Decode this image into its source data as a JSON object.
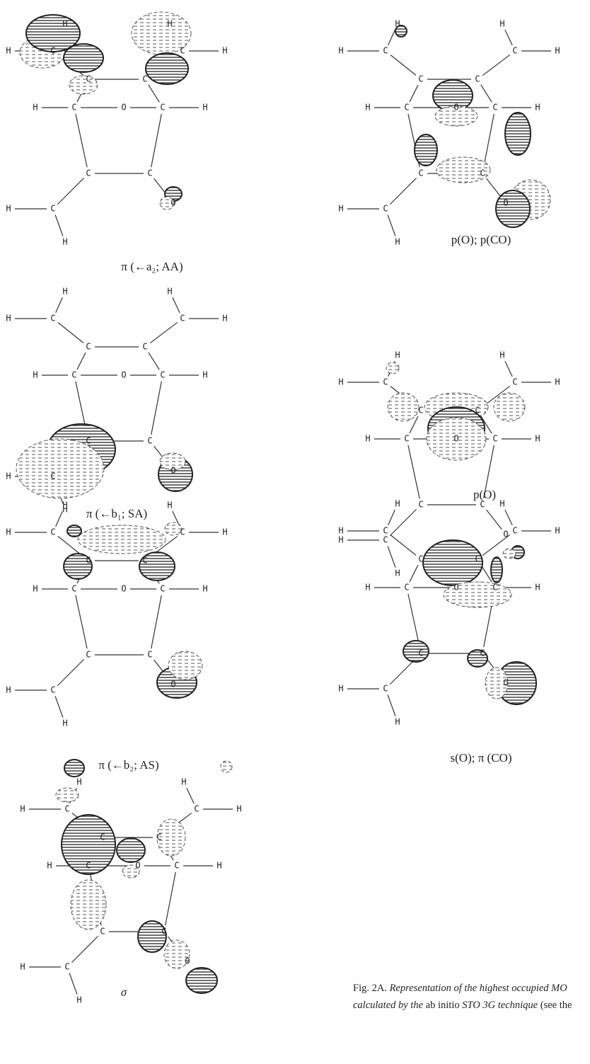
{
  "figure": {
    "panels": [
      {
        "caption": "π (←a₂; AA)",
        "atoms": [
          "H",
          "H",
          "H",
          "C",
          "C",
          "H",
          "C",
          "C",
          "H",
          "C",
          "O",
          "C",
          "H",
          "C",
          "C",
          "O",
          "H",
          "C",
          "H"
        ]
      },
      {
        "caption": "π (←b₁; SA)",
        "atoms": [
          "H",
          "H",
          "H",
          "C",
          "C",
          "H",
          "C",
          "C",
          "H",
          "C",
          "O",
          "C",
          "H",
          "C",
          "C",
          "O",
          "H",
          "C",
          "H"
        ]
      },
      {
        "caption": "π (←b₂; AS)",
        "atoms": [
          "H",
          "H",
          "H",
          "C",
          "C",
          "H",
          "C",
          "C",
          "H",
          "C",
          "O",
          "C",
          "H",
          "C",
          "C",
          "O",
          "H",
          "C",
          "H"
        ]
      },
      {
        "caption": "σ",
        "atoms": [
          "H",
          "H",
          "H",
          "C",
          "C",
          "H",
          "C",
          "C",
          "H",
          "C",
          "O",
          "C",
          "H",
          "C",
          "C",
          "O",
          "H",
          "C",
          "H"
        ]
      },
      {
        "caption": "p(O); p(CO)",
        "atoms": [
          "H",
          "H",
          "H",
          "C",
          "C",
          "H",
          "C",
          "C",
          "H",
          "C",
          "O",
          "C",
          "H",
          "C",
          "C",
          "O",
          "H",
          "C",
          "H"
        ]
      },
      {
        "caption": "p(O)",
        "atoms": [
          "H",
          "H",
          "H",
          "C",
          "C",
          "H",
          "C",
          "C",
          "H",
          "C",
          "O",
          "C",
          "H",
          "C",
          "C",
          "O",
          "H",
          "C",
          "H"
        ]
      },
      {
        "caption": "s(O); π (CO)",
        "atoms": [
          "H",
          "H",
          "H",
          "C",
          "C",
          "H",
          "C",
          "C",
          "H",
          "C",
          "O",
          "C",
          "H",
          "C",
          "C",
          "O",
          "H",
          "C",
          "H"
        ]
      }
    ],
    "caption": {
      "line1": [
        "Fig. 2A.",
        "Representation of the highest occupied MO"
      ],
      "line2": [
        "calculated by the",
        "ab initio",
        "STO 3G technique",
        "(see the"
      ]
    }
  }
}
